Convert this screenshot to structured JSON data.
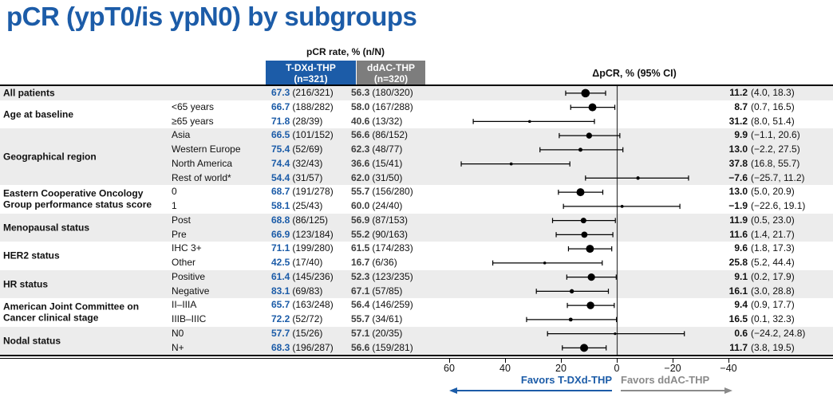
{
  "title": "pCR (ypT0/is ypN0) by subgroups",
  "header": {
    "pcr_rate_label": "pCR rate, % (n/N)",
    "arm1": {
      "name": "T-DXd-THP",
      "n": "(n=321)"
    },
    "arm2": {
      "name": "ddAC-THP",
      "n": "(n=320)"
    },
    "delta_label": "ΔpCR, % (95% CI)"
  },
  "footer": {
    "favors_left": "Favors T-DXd-THP",
    "favors_right": "Favors ddAC-THP"
  },
  "colors": {
    "accent_blue": "#1C5CA8",
    "header_gray": "#7D7D7D",
    "row_shade": "#ECECEC",
    "favors_gray": "#8A8A8A",
    "marker_black": "#000000"
  },
  "chart_data": {
    "type": "forest",
    "title": "pCR (ypT0/is ypN0) by subgroups",
    "effect_label": "ΔpCR, % (95% CI)",
    "axis": {
      "reversed": true,
      "range": [
        60,
        -40
      ],
      "ticks": [
        {
          "v": 60,
          "label": "60"
        },
        {
          "v": 40,
          "label": "40"
        },
        {
          "v": 20,
          "label": "20"
        },
        {
          "v": 0,
          "label": "0"
        },
        {
          "v": -20,
          "label": "−20"
        },
        {
          "v": -40,
          "label": "−40"
        }
      ]
    },
    "groups": [
      {
        "label": "All patients",
        "rows": [
          {
            "sublabel": "",
            "tdxd_pct": "67.3",
            "tdxd_nn": "(216/321)",
            "ddac_pct": "56.3",
            "ddac_nn": "(180/320)",
            "delta": 11.2,
            "ci_low": 4.0,
            "ci_high": 18.3,
            "delta_text": "11.2",
            "ci_text": "(4.0, 18.3)",
            "marker_size": 5.3
          }
        ]
      },
      {
        "label": "Age at baseline",
        "rows": [
          {
            "sublabel": "<65 years",
            "tdxd_pct": "66.7",
            "tdxd_nn": "(188/282)",
            "ddac_pct": "58.0",
            "ddac_nn": "(167/288)",
            "delta": 8.7,
            "ci_low": 0.7,
            "ci_high": 16.5,
            "delta_text": "8.7",
            "ci_text": "(0.7, 16.5)",
            "marker_size": 5.0
          },
          {
            "sublabel": "≥65 years",
            "tdxd_pct": "71.8",
            "tdxd_nn": "(28/39)",
            "ddac_pct": "40.6",
            "ddac_nn": "(13/32)",
            "delta": 31.2,
            "ci_low": 8.0,
            "ci_high": 51.4,
            "delta_text": "31.2",
            "ci_text": "(8.0, 51.4)",
            "marker_size": 1.8
          }
        ]
      },
      {
        "label": "Geographical region",
        "rows": [
          {
            "sublabel": "Asia",
            "tdxd_pct": "66.5",
            "tdxd_nn": "(101/152)",
            "ddac_pct": "56.6",
            "ddac_nn": "(86/152)",
            "delta": 9.9,
            "ci_low": -1.1,
            "ci_high": 20.6,
            "delta_text": "9.9",
            "ci_text": "(−1.1, 20.6)",
            "marker_size": 3.7
          },
          {
            "sublabel": "Western Europe",
            "tdxd_pct": "75.4",
            "tdxd_nn": "(52/69)",
            "ddac_pct": "62.3",
            "ddac_nn": "(48/77)",
            "delta": 13.0,
            "ci_low": -2.2,
            "ci_high": 27.5,
            "delta_text": "13.0",
            "ci_text": "(−2.2, 27.5)",
            "marker_size": 2.5
          },
          {
            "sublabel": "North America",
            "tdxd_pct": "74.4",
            "tdxd_nn": "(32/43)",
            "ddac_pct": "36.6",
            "ddac_nn": "(15/41)",
            "delta": 37.8,
            "ci_low": 16.8,
            "ci_high": 55.7,
            "delta_text": "37.8",
            "ci_text": "(16.8, 55.7)",
            "marker_size": 1.9
          },
          {
            "sublabel": "Rest of world*",
            "tdxd_pct": "54.4",
            "tdxd_nn": "(31/57)",
            "ddac_pct": "62.0",
            "ddac_nn": "(31/50)",
            "delta": -7.6,
            "ci_low": -25.7,
            "ci_high": 11.2,
            "delta_text": "−7.6",
            "ci_text": "(−25.7, 11.2)",
            "marker_size": 2.2
          }
        ]
      },
      {
        "label": "Eastern Cooperative Oncology Group performance status score",
        "rows": [
          {
            "sublabel": "0",
            "tdxd_pct": "68.7",
            "tdxd_nn": "(191/278)",
            "ddac_pct": "55.7",
            "ddac_nn": "(156/280)",
            "delta": 13.0,
            "ci_low": 5.0,
            "ci_high": 20.9,
            "delta_text": "13.0",
            "ci_text": "(5.0, 20.9)",
            "marker_size": 5.0
          },
          {
            "sublabel": "1",
            "tdxd_pct": "58.1",
            "tdxd_nn": "(25/43)",
            "ddac_pct": "60.0",
            "ddac_nn": "(24/40)",
            "delta": -1.9,
            "ci_low": -22.6,
            "ci_high": 19.1,
            "delta_text": "−1.9",
            "ci_text": "(−22.6, 19.1)",
            "marker_size": 1.9
          }
        ]
      },
      {
        "label": "Menopausal status",
        "rows": [
          {
            "sublabel": "Post",
            "tdxd_pct": "68.8",
            "tdxd_nn": "(86/125)",
            "ddac_pct": "56.9",
            "ddac_nn": "(87/153)",
            "delta": 11.9,
            "ci_low": 0.5,
            "ci_high": 23.0,
            "delta_text": "11.9",
            "ci_text": "(0.5, 23.0)",
            "marker_size": 3.5
          },
          {
            "sublabel": "Pre",
            "tdxd_pct": "66.9",
            "tdxd_nn": "(123/184)",
            "ddac_pct": "55.2",
            "ddac_nn": "(90/163)",
            "delta": 11.6,
            "ci_low": 1.4,
            "ci_high": 21.7,
            "delta_text": "11.6",
            "ci_text": "(1.4, 21.7)",
            "marker_size": 3.9
          }
        ]
      },
      {
        "label": "HER2 status",
        "rows": [
          {
            "sublabel": "IHC 3+",
            "tdxd_pct": "71.1",
            "tdxd_nn": "(199/280)",
            "ddac_pct": "61.5",
            "ddac_nn": "(174/283)",
            "delta": 9.6,
            "ci_low": 1.8,
            "ci_high": 17.3,
            "delta_text": "9.6",
            "ci_text": "(1.8, 17.3)",
            "marker_size": 5.0
          },
          {
            "sublabel": "Other",
            "tdxd_pct": "42.5",
            "tdxd_nn": "(17/40)",
            "ddac_pct": "16.7",
            "ddac_nn": "(6/36)",
            "delta": 25.8,
            "ci_low": 5.2,
            "ci_high": 44.4,
            "delta_text": "25.8",
            "ci_text": "(5.2, 44.4)",
            "marker_size": 1.8
          }
        ]
      },
      {
        "label": "HR status",
        "rows": [
          {
            "sublabel": "Positive",
            "tdxd_pct": "61.4",
            "tdxd_nn": "(145/236)",
            "ddac_pct": "52.3",
            "ddac_nn": "(123/235)",
            "delta": 9.1,
            "ci_low": 0.2,
            "ci_high": 17.9,
            "delta_text": "9.1",
            "ci_text": "(0.2, 17.9)",
            "marker_size": 4.6
          },
          {
            "sublabel": "Negative",
            "tdxd_pct": "83.1",
            "tdxd_nn": "(69/83)",
            "ddac_pct": "67.1",
            "ddac_nn": "(57/85)",
            "delta": 16.1,
            "ci_low": 3.0,
            "ci_high": 28.8,
            "delta_text": "16.1",
            "ci_text": "(3.0, 28.8)",
            "marker_size": 2.7
          }
        ]
      },
      {
        "label": "American Joint Committee on Cancer clinical stage",
        "rows": [
          {
            "sublabel": "II–IIIA",
            "tdxd_pct": "65.7",
            "tdxd_nn": "(163/248)",
            "ddac_pct": "56.4",
            "ddac_nn": "(146/259)",
            "delta": 9.4,
            "ci_low": 0.9,
            "ci_high": 17.7,
            "delta_text": "9.4",
            "ci_text": "(0.9, 17.7)",
            "marker_size": 4.7
          },
          {
            "sublabel": "IIIB–IIIC",
            "tdxd_pct": "72.2",
            "tdxd_nn": "(52/72)",
            "ddac_pct": "55.7",
            "ddac_nn": "(34/61)",
            "delta": 16.5,
            "ci_low": 0.1,
            "ci_high": 32.3,
            "delta_text": "16.5",
            "ci_text": "(0.1, 32.3)",
            "marker_size": 2.4
          }
        ]
      },
      {
        "label": "Nodal status",
        "rows": [
          {
            "sublabel": "N0",
            "tdxd_pct": "57.7",
            "tdxd_nn": "(15/26)",
            "ddac_pct": "57.1",
            "ddac_nn": "(20/35)",
            "delta": 0.6,
            "ci_low": -24.2,
            "ci_high": 24.8,
            "delta_text": "0.6",
            "ci_text": "(−24.2, 24.8)",
            "marker_size": 1.6
          },
          {
            "sublabel": "N+",
            "tdxd_pct": "68.3",
            "tdxd_nn": "(196/287)",
            "ddac_pct": "56.6",
            "ddac_nn": "(159/281)",
            "delta": 11.7,
            "ci_low": 3.8,
            "ci_high": 19.5,
            "delta_text": "11.7",
            "ci_text": "(3.8, 19.5)",
            "marker_size": 5.0
          }
        ]
      }
    ]
  }
}
